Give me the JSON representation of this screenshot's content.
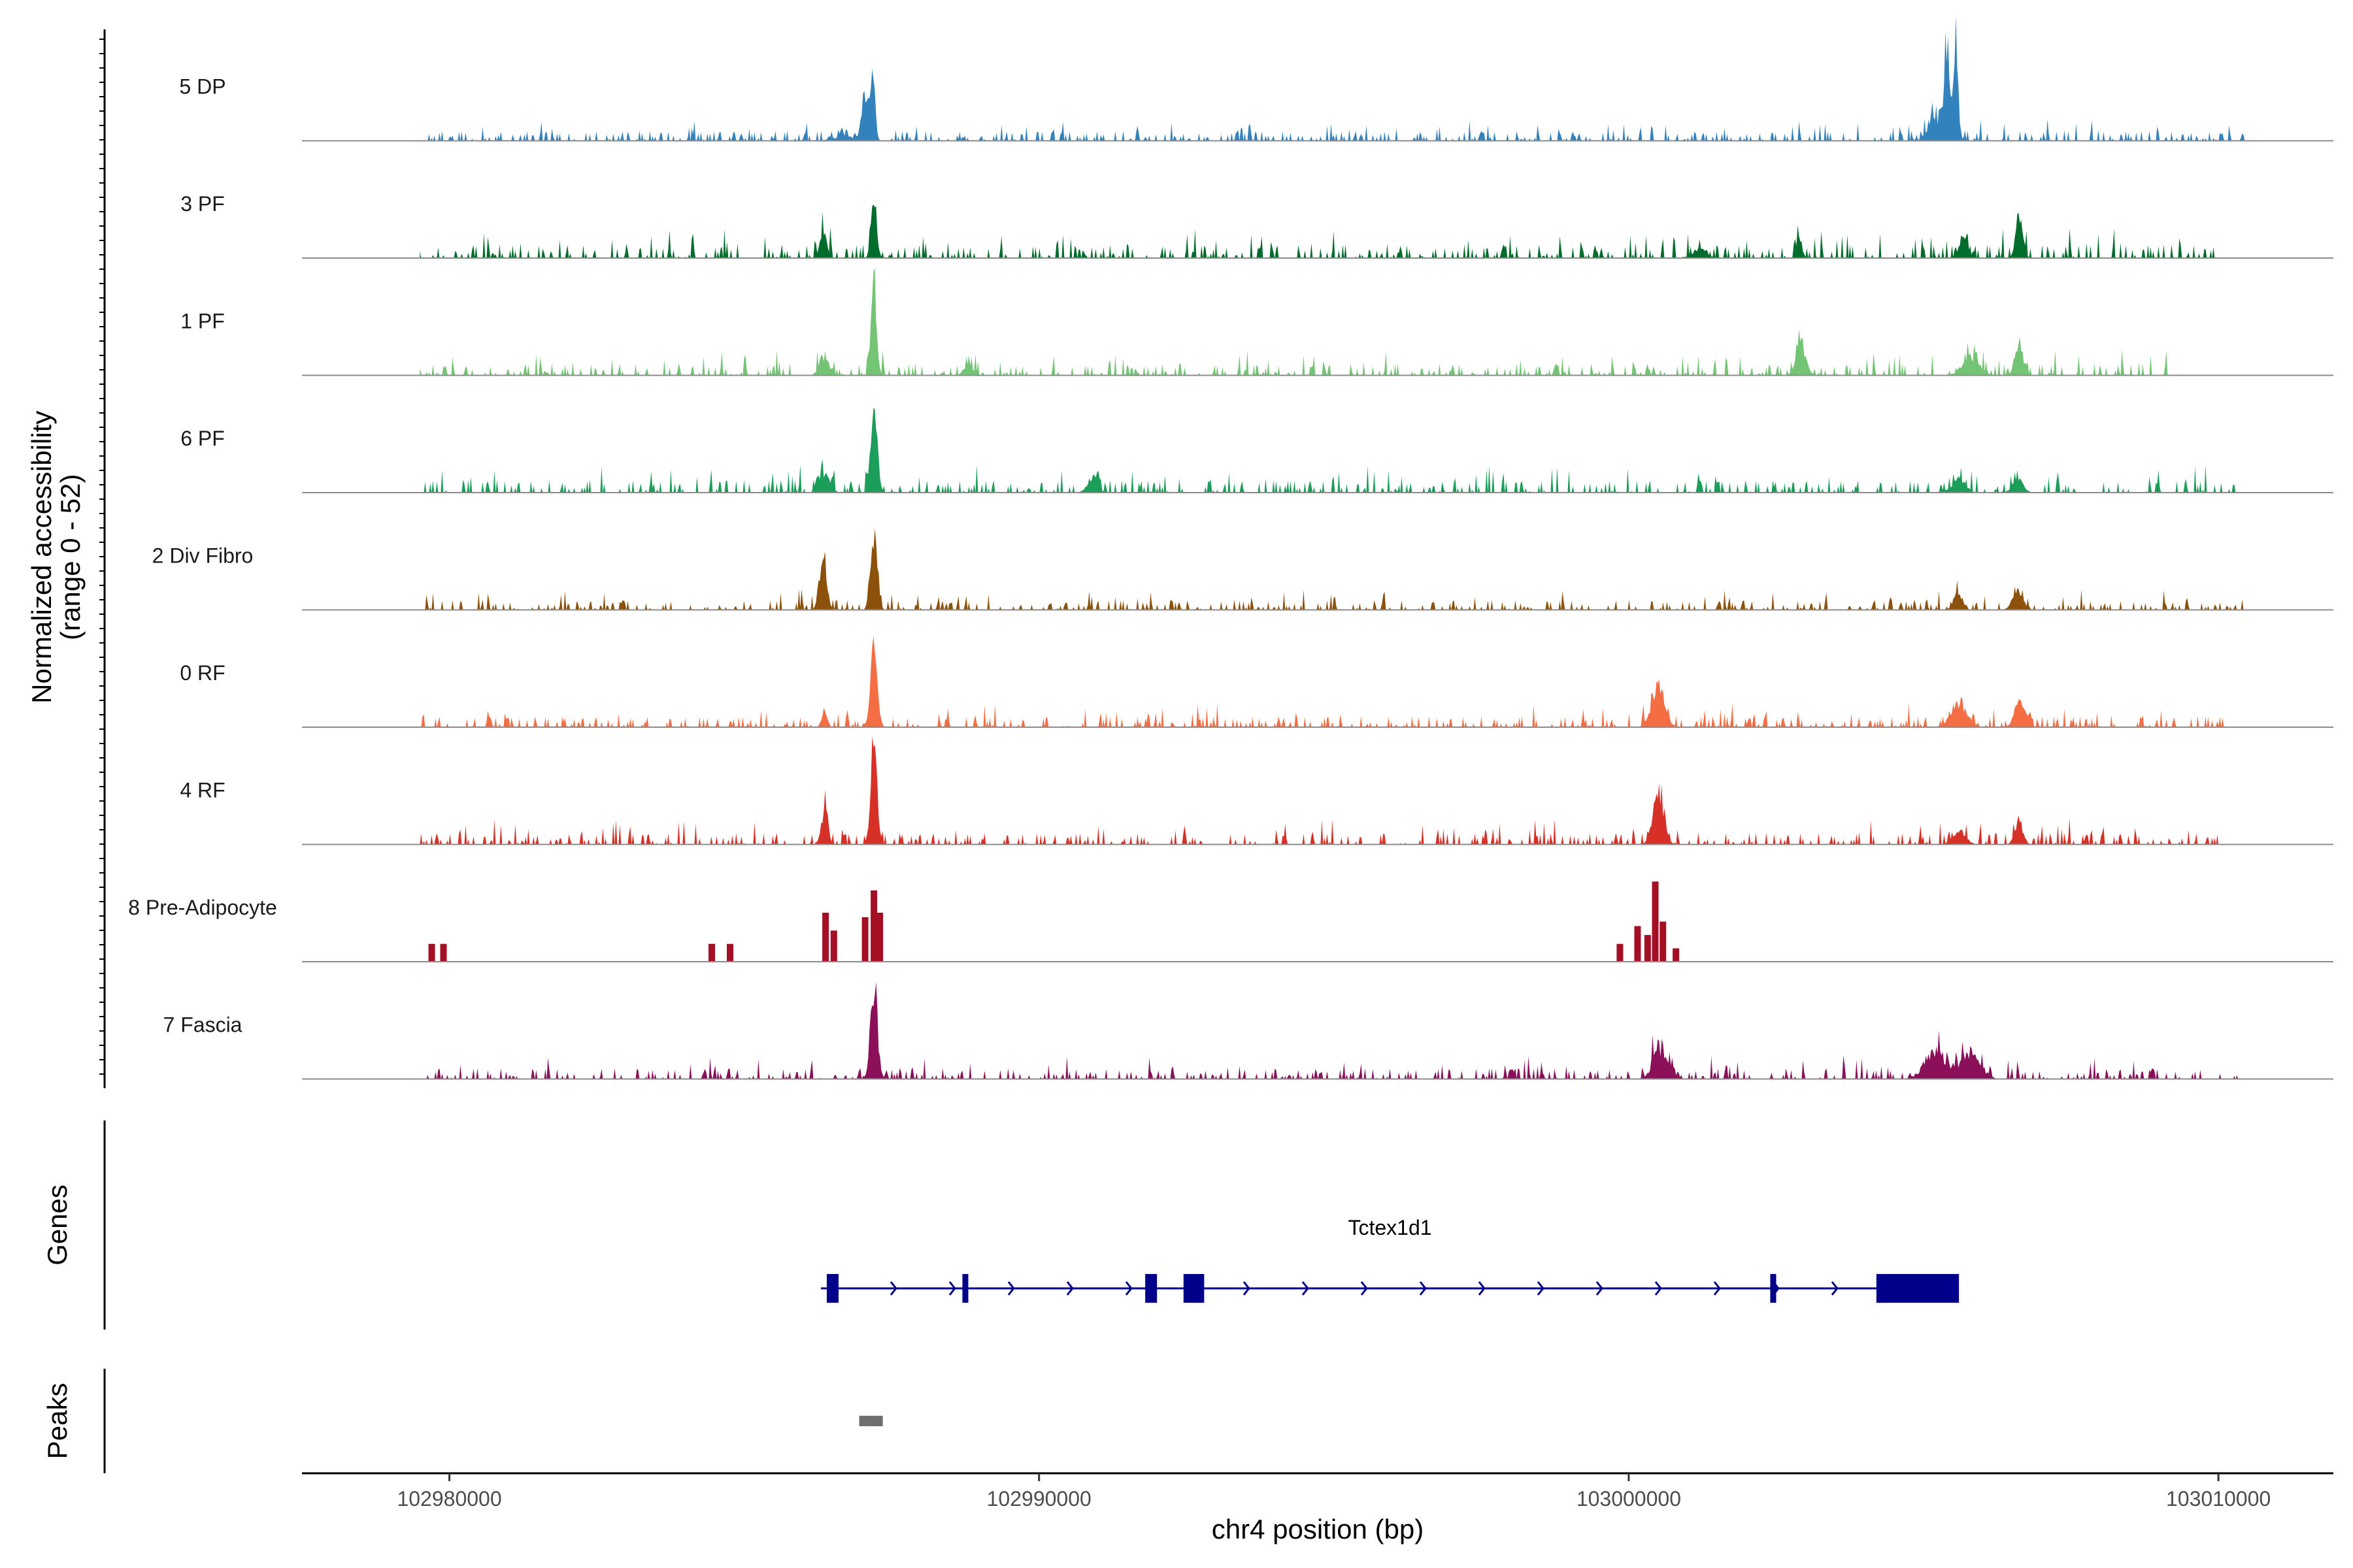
{
  "chart_data": {
    "type": "area",
    "title": "",
    "xlabel": "chr4 position (bp)",
    "ylabel": "Normalized accessibility\n(range 0 - 52)",
    "ylabel_lines": [
      "Normalized accessibility",
      "(range 0 - 52)"
    ],
    "y_range": [
      0,
      52
    ],
    "xlim": [
      102977500,
      103011950
    ],
    "x_ticks": [
      102980000,
      102990000,
      103000000,
      103010000
    ],
    "x_tick_labels": [
      "102980000",
      "102990000",
      "103000000",
      "103010000"
    ],
    "series": [
      {
        "name": "5 DP",
        "color": "#3182BD",
        "style": "dense",
        "peaks": [
          [
            102986680,
            0.85,
            180,
            0.55
          ],
          [
            102987180,
            14,
            40,
            0.2
          ],
          [
            102987050,
            9,
            60,
            0.2
          ],
          [
            103005300,
            7,
            170,
            0.7
          ],
          [
            103005550,
            20,
            35,
            0.22
          ],
          [
            103005400,
            14,
            45,
            0.22
          ]
        ],
        "extent": [
          102979500,
          103010500
        ],
        "noise": 1.0
      },
      {
        "name": "3 PF",
        "color": "#006D2C",
        "style": "dense",
        "peaks": [
          [
            102986340,
            6.5,
            55,
            0.2
          ],
          [
            102987200,
            15,
            45,
            0.2
          ],
          [
            103002890,
            5,
            45,
            0.2
          ],
          [
            103005680,
            5,
            70,
            0.2
          ],
          [
            103006620,
            10,
            55,
            0.2
          ],
          [
            103001200,
            2,
            120,
            0.3
          ]
        ],
        "extent": [
          102979500,
          103010000
        ],
        "noise": 1.4
      },
      {
        "name": "1 PF",
        "color": "#74C476",
        "style": "dense",
        "peaks": [
          [
            102986360,
            4,
            80,
            0.25
          ],
          [
            102987200,
            21,
            45,
            0.2
          ],
          [
            102988800,
            2.5,
            70,
            0.2
          ],
          [
            103002920,
            7,
            80,
            0.25
          ],
          [
            103005800,
            4,
            140,
            0.25
          ],
          [
            103006620,
            6,
            70,
            0.2
          ]
        ],
        "extent": [
          102979500,
          103009200
        ],
        "noise": 1.2
      },
      {
        "name": "6 PF",
        "color": "#1B9E5A",
        "style": "dense",
        "peaks": [
          [
            102986360,
            4,
            90,
            0.25
          ],
          [
            102987200,
            19,
            55,
            0.2
          ],
          [
            102990900,
            2.5,
            90,
            0.2
          ],
          [
            103005600,
            3,
            110,
            0.25
          ],
          [
            103006600,
            3,
            90,
            0.25
          ]
        ],
        "extent": [
          102979500,
          103010300
        ],
        "noise": 1.3
      },
      {
        "name": "2 Div Fibro",
        "color": "#8C510A",
        "style": "dense",
        "peaks": [
          [
            102986340,
            12,
            60,
            0.2
          ],
          [
            102987200,
            17,
            55,
            0.2
          ],
          [
            103005580,
            4,
            70,
            0.25
          ],
          [
            103006600,
            4,
            90,
            0.25
          ]
        ],
        "extent": [
          102979500,
          103010500
        ],
        "noise": 1.0
      },
      {
        "name": "0 RF",
        "color": "#F46D43",
        "style": "dense",
        "peaks": [
          [
            102987200,
            20,
            55,
            0.2
          ],
          [
            103000500,
            9,
            110,
            0.25
          ],
          [
            103005600,
            5,
            140,
            0.25
          ],
          [
            103006620,
            6,
            80,
            0.25
          ],
          [
            102986360,
            4,
            45,
            0.2
          ]
        ],
        "extent": [
          102979500,
          103010100
        ],
        "noise": 1.1
      },
      {
        "name": "4 RF",
        "color": "#D73027",
        "style": "dense",
        "peaks": [
          [
            102986360,
            7,
            55,
            0.2
          ],
          [
            102987200,
            21,
            55,
            0.2
          ],
          [
            103000500,
            12,
            90,
            0.22
          ],
          [
            103005600,
            3,
            110,
            0.25
          ],
          [
            103006620,
            5,
            70,
            0.25
          ]
        ],
        "extent": [
          102979500,
          103010000
        ],
        "noise": 1.2
      },
      {
        "name": "8 Pre-Adipocyte",
        "color": "#A50F24",
        "style": "sparse",
        "bars": [
          [
            102979700,
            4
          ],
          [
            102979900,
            4
          ],
          [
            102984450,
            4
          ],
          [
            102984760,
            4
          ],
          [
            102986380,
            11
          ],
          [
            102986520,
            7
          ],
          [
            102987050,
            10
          ],
          [
            102987200,
            16
          ],
          [
            102987300,
            11
          ],
          [
            102999850,
            4
          ],
          [
            103000150,
            8
          ],
          [
            103000320,
            6
          ],
          [
            103000450,
            18
          ],
          [
            103000580,
            9
          ],
          [
            103000800,
            3
          ]
        ],
        "extent": [
          102979500,
          103001000
        ],
        "noise": 0
      },
      {
        "name": "7 Fascia",
        "color": "#8C0F59",
        "style": "dense",
        "peaks": [
          [
            102987200,
            19,
            60,
            0.2
          ],
          [
            103000550,
            7,
            130,
            0.3
          ],
          [
            103005200,
            6,
            180,
            0.3
          ],
          [
            103005800,
            6,
            160,
            0.3
          ]
        ],
        "extent": [
          102979500,
          103010500
        ],
        "noise": 1.1
      }
    ],
    "genes": {
      "label": "Genes",
      "name": "Tctex1d1",
      "color": "#00008B",
      "start": 102986300,
      "end": 103005600,
      "exons": [
        [
          102986400,
          102986600
        ],
        [
          102988700,
          102988800
        ],
        [
          102991800,
          102992000
        ],
        [
          102992450,
          102992800
        ],
        [
          103002400,
          103002500
        ],
        [
          103004200,
          103005600
        ]
      ]
    },
    "peaks_track": {
      "label": "Peaks",
      "color": "#6E6E6E",
      "regions": [
        [
          102986950,
          102987350
        ]
      ]
    }
  }
}
